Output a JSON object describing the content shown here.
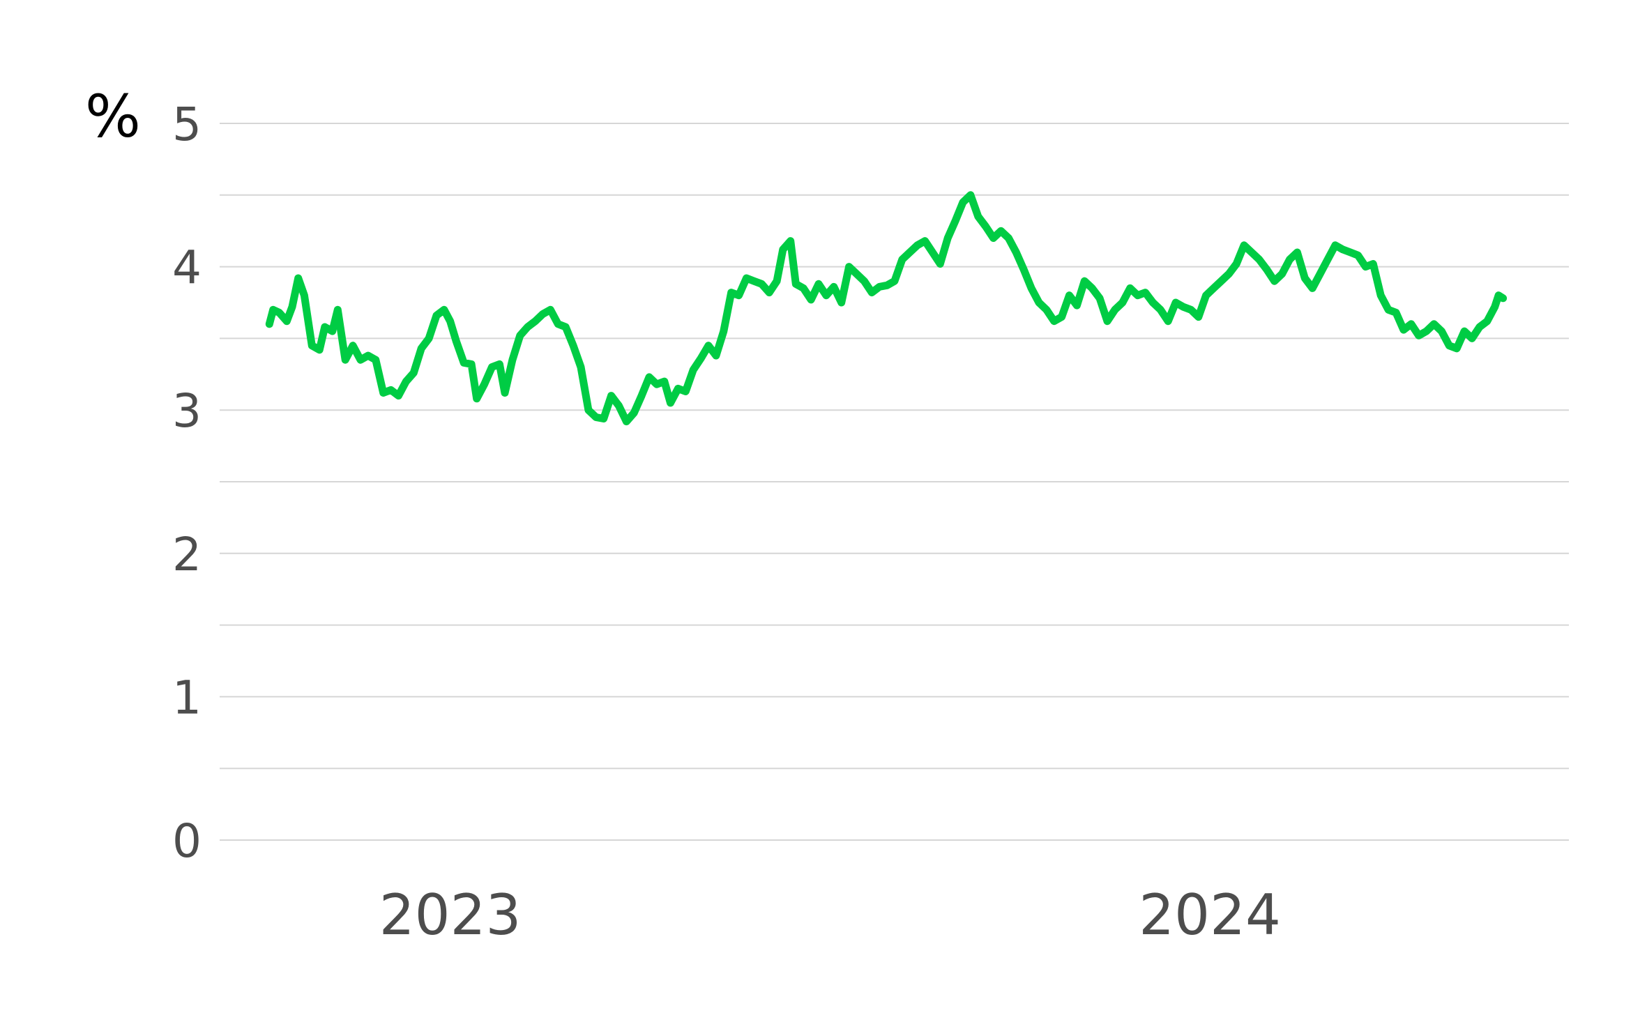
{
  "chart_data": {
    "type": "line",
    "title": "",
    "xlabel": "",
    "ylabel": "%",
    "ylim": [
      0,
      5
    ],
    "ytick_step": 1,
    "grid": "horizontal",
    "yticks": [
      "0",
      "1",
      "2",
      "3",
      "4",
      "5"
    ],
    "xticks": [
      {
        "label": "2023",
        "x": 2023.2
      },
      {
        "label": "2024",
        "x": 2024.2
      }
    ],
    "series": [
      {
        "color": "#00cc44",
        "points": [
          [
            2022.962,
            3.6
          ],
          [
            2022.967,
            3.7
          ],
          [
            2022.975,
            3.68
          ],
          [
            2022.985,
            3.62
          ],
          [
            2022.992,
            3.72
          ],
          [
            2023.0,
            3.92
          ],
          [
            2023.008,
            3.8
          ],
          [
            2023.018,
            3.45
          ],
          [
            2023.028,
            3.42
          ],
          [
            2023.035,
            3.58
          ],
          [
            2023.045,
            3.55
          ],
          [
            2023.052,
            3.7
          ],
          [
            2023.062,
            3.35
          ],
          [
            2023.072,
            3.45
          ],
          [
            2023.082,
            3.35
          ],
          [
            2023.092,
            3.38
          ],
          [
            2023.102,
            3.35
          ],
          [
            2023.112,
            3.12
          ],
          [
            2023.122,
            3.14
          ],
          [
            2023.132,
            3.1
          ],
          [
            2023.142,
            3.2
          ],
          [
            2023.152,
            3.26
          ],
          [
            2023.162,
            3.43
          ],
          [
            2023.172,
            3.5
          ],
          [
            2023.182,
            3.66
          ],
          [
            2023.192,
            3.7
          ],
          [
            2023.2,
            3.62
          ],
          [
            2023.208,
            3.48
          ],
          [
            2023.218,
            3.33
          ],
          [
            2023.228,
            3.32
          ],
          [
            2023.235,
            3.08
          ],
          [
            2023.245,
            3.18
          ],
          [
            2023.255,
            3.3
          ],
          [
            2023.265,
            3.32
          ],
          [
            2023.272,
            3.12
          ],
          [
            2023.282,
            3.35
          ],
          [
            2023.292,
            3.52
          ],
          [
            2023.302,
            3.58
          ],
          [
            2023.312,
            3.62
          ],
          [
            2023.322,
            3.67
          ],
          [
            2023.332,
            3.7
          ],
          [
            2023.342,
            3.6
          ],
          [
            2023.352,
            3.58
          ],
          [
            2023.362,
            3.45
          ],
          [
            2023.372,
            3.3
          ],
          [
            2023.382,
            3.0
          ],
          [
            2023.392,
            2.95
          ],
          [
            2023.402,
            2.94
          ],
          [
            2023.412,
            3.1
          ],
          [
            2023.422,
            3.03
          ],
          [
            2023.432,
            2.92
          ],
          [
            2023.442,
            2.98
          ],
          [
            2023.452,
            3.1
          ],
          [
            2023.462,
            3.23
          ],
          [
            2023.472,
            3.18
          ],
          [
            2023.482,
            3.2
          ],
          [
            2023.49,
            3.05
          ],
          [
            2023.5,
            3.15
          ],
          [
            2023.51,
            3.13
          ],
          [
            2023.52,
            3.28
          ],
          [
            2023.53,
            3.36
          ],
          [
            2023.54,
            3.45
          ],
          [
            2023.55,
            3.38
          ],
          [
            2023.56,
            3.55
          ],
          [
            2023.57,
            3.82
          ],
          [
            2023.58,
            3.8
          ],
          [
            2023.59,
            3.92
          ],
          [
            2023.6,
            3.9
          ],
          [
            2023.61,
            3.88
          ],
          [
            2023.62,
            3.82
          ],
          [
            2023.63,
            3.9
          ],
          [
            2023.638,
            4.12
          ],
          [
            2023.648,
            4.18
          ],
          [
            2023.655,
            3.88
          ],
          [
            2023.665,
            3.85
          ],
          [
            2023.675,
            3.77
          ],
          [
            2023.685,
            3.88
          ],
          [
            2023.695,
            3.8
          ],
          [
            2023.705,
            3.86
          ],
          [
            2023.715,
            3.75
          ],
          [
            2023.725,
            4.0
          ],
          [
            2023.735,
            3.95
          ],
          [
            2023.745,
            3.9
          ],
          [
            2023.755,
            3.82
          ],
          [
            2023.765,
            3.86
          ],
          [
            2023.775,
            3.87
          ],
          [
            2023.785,
            3.9
          ],
          [
            2023.795,
            4.05
          ],
          [
            2023.805,
            4.1
          ],
          [
            2023.815,
            4.15
          ],
          [
            2023.825,
            4.18
          ],
          [
            2023.835,
            4.1
          ],
          [
            2023.845,
            4.02
          ],
          [
            2023.855,
            4.2
          ],
          [
            2023.865,
            4.32
          ],
          [
            2023.875,
            4.45
          ],
          [
            2023.885,
            4.5
          ],
          [
            2023.895,
            4.35
          ],
          [
            2023.905,
            4.28
          ],
          [
            2023.915,
            4.2
          ],
          [
            2023.925,
            4.25
          ],
          [
            2023.935,
            4.2
          ],
          [
            2023.945,
            4.1
          ],
          [
            2023.955,
            3.98
          ],
          [
            2023.965,
            3.85
          ],
          [
            2023.975,
            3.75
          ],
          [
            2023.985,
            3.7
          ],
          [
            2023.995,
            3.62
          ],
          [
            2024.005,
            3.65
          ],
          [
            2024.015,
            3.8
          ],
          [
            2024.025,
            3.73
          ],
          [
            2024.035,
            3.9
          ],
          [
            2024.045,
            3.85
          ],
          [
            2024.055,
            3.78
          ],
          [
            2024.065,
            3.62
          ],
          [
            2024.075,
            3.7
          ],
          [
            2024.085,
            3.75
          ],
          [
            2024.095,
            3.85
          ],
          [
            2024.105,
            3.8
          ],
          [
            2024.115,
            3.82
          ],
          [
            2024.125,
            3.75
          ],
          [
            2024.135,
            3.7
          ],
          [
            2024.145,
            3.62
          ],
          [
            2024.155,
            3.75
          ],
          [
            2024.165,
            3.72
          ],
          [
            2024.175,
            3.7
          ],
          [
            2024.185,
            3.65
          ],
          [
            2024.195,
            3.8
          ],
          [
            2024.205,
            3.85
          ],
          [
            2024.215,
            3.9
          ],
          [
            2024.225,
            3.95
          ],
          [
            2024.235,
            4.02
          ],
          [
            2024.245,
            4.15
          ],
          [
            2024.255,
            4.1
          ],
          [
            2024.265,
            4.05
          ],
          [
            2024.275,
            3.98
          ],
          [
            2024.285,
            3.9
          ],
          [
            2024.295,
            3.95
          ],
          [
            2024.305,
            4.05
          ],
          [
            2024.315,
            4.1
          ],
          [
            2024.325,
            3.92
          ],
          [
            2024.335,
            3.85
          ],
          [
            2024.345,
            3.95
          ],
          [
            2024.355,
            4.05
          ],
          [
            2024.365,
            4.15
          ],
          [
            2024.375,
            4.12
          ],
          [
            2024.385,
            4.1
          ],
          [
            2024.395,
            4.08
          ],
          [
            2024.405,
            4.0
          ],
          [
            2024.415,
            4.02
          ],
          [
            2024.425,
            3.8
          ],
          [
            2024.435,
            3.7
          ],
          [
            2024.445,
            3.68
          ],
          [
            2024.455,
            3.56
          ],
          [
            2024.465,
            3.6
          ],
          [
            2024.475,
            3.52
          ],
          [
            2024.485,
            3.55
          ],
          [
            2024.495,
            3.6
          ],
          [
            2024.505,
            3.55
          ],
          [
            2024.515,
            3.45
          ],
          [
            2024.525,
            3.43
          ],
          [
            2024.535,
            3.55
          ],
          [
            2024.545,
            3.5
          ],
          [
            2024.555,
            3.58
          ],
          [
            2024.565,
            3.62
          ],
          [
            2024.575,
            3.72
          ],
          [
            2024.58,
            3.8
          ],
          [
            2024.586,
            3.78
          ]
        ]
      }
    ]
  }
}
